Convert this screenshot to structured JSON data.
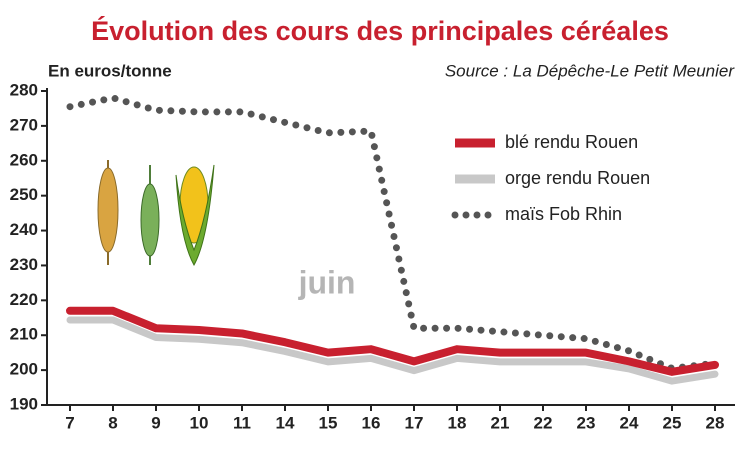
{
  "chart_data": {
    "type": "line",
    "title": "Évolution des cours des principales céréales",
    "y_label": "En euros/tonne",
    "source": "Source : La Dépêche-Le Petit Meunier",
    "annotation": "juin",
    "categories": [
      "7",
      "8",
      "9",
      "10",
      "11",
      "14",
      "15",
      "16",
      "17",
      "18",
      "21",
      "22",
      "23",
      "24",
      "25",
      "28"
    ],
    "series": [
      {
        "name": "blé rendu Rouen",
        "color": "#c8202f",
        "style": "solid",
        "values": [
          217,
          217,
          212,
          211.5,
          210.5,
          208,
          205,
          206,
          202.5,
          206,
          205,
          205,
          205,
          202.5,
          199.5,
          201.5
        ]
      },
      {
        "name": "orge rendu Rouen",
        "color": "#c8c8c8",
        "style": "solid",
        "values": [
          215.5,
          215.5,
          210.5,
          210,
          209,
          206.5,
          203.5,
          204.5,
          201,
          204.5,
          203.5,
          203.5,
          203.5,
          201.5,
          198,
          200
        ]
      },
      {
        "name": "maïs Fob Rhin",
        "color": "#555555",
        "style": "dotted",
        "values": [
          275.5,
          278,
          274.5,
          274,
          274,
          271,
          268,
          268.5,
          212,
          212,
          211,
          210,
          209,
          205.5,
          200.5,
          202
        ]
      }
    ],
    "ylim": [
      190,
      280
    ],
    "yticks": [
      190,
      200,
      210,
      220,
      230,
      240,
      250,
      260,
      270,
      280
    ]
  }
}
